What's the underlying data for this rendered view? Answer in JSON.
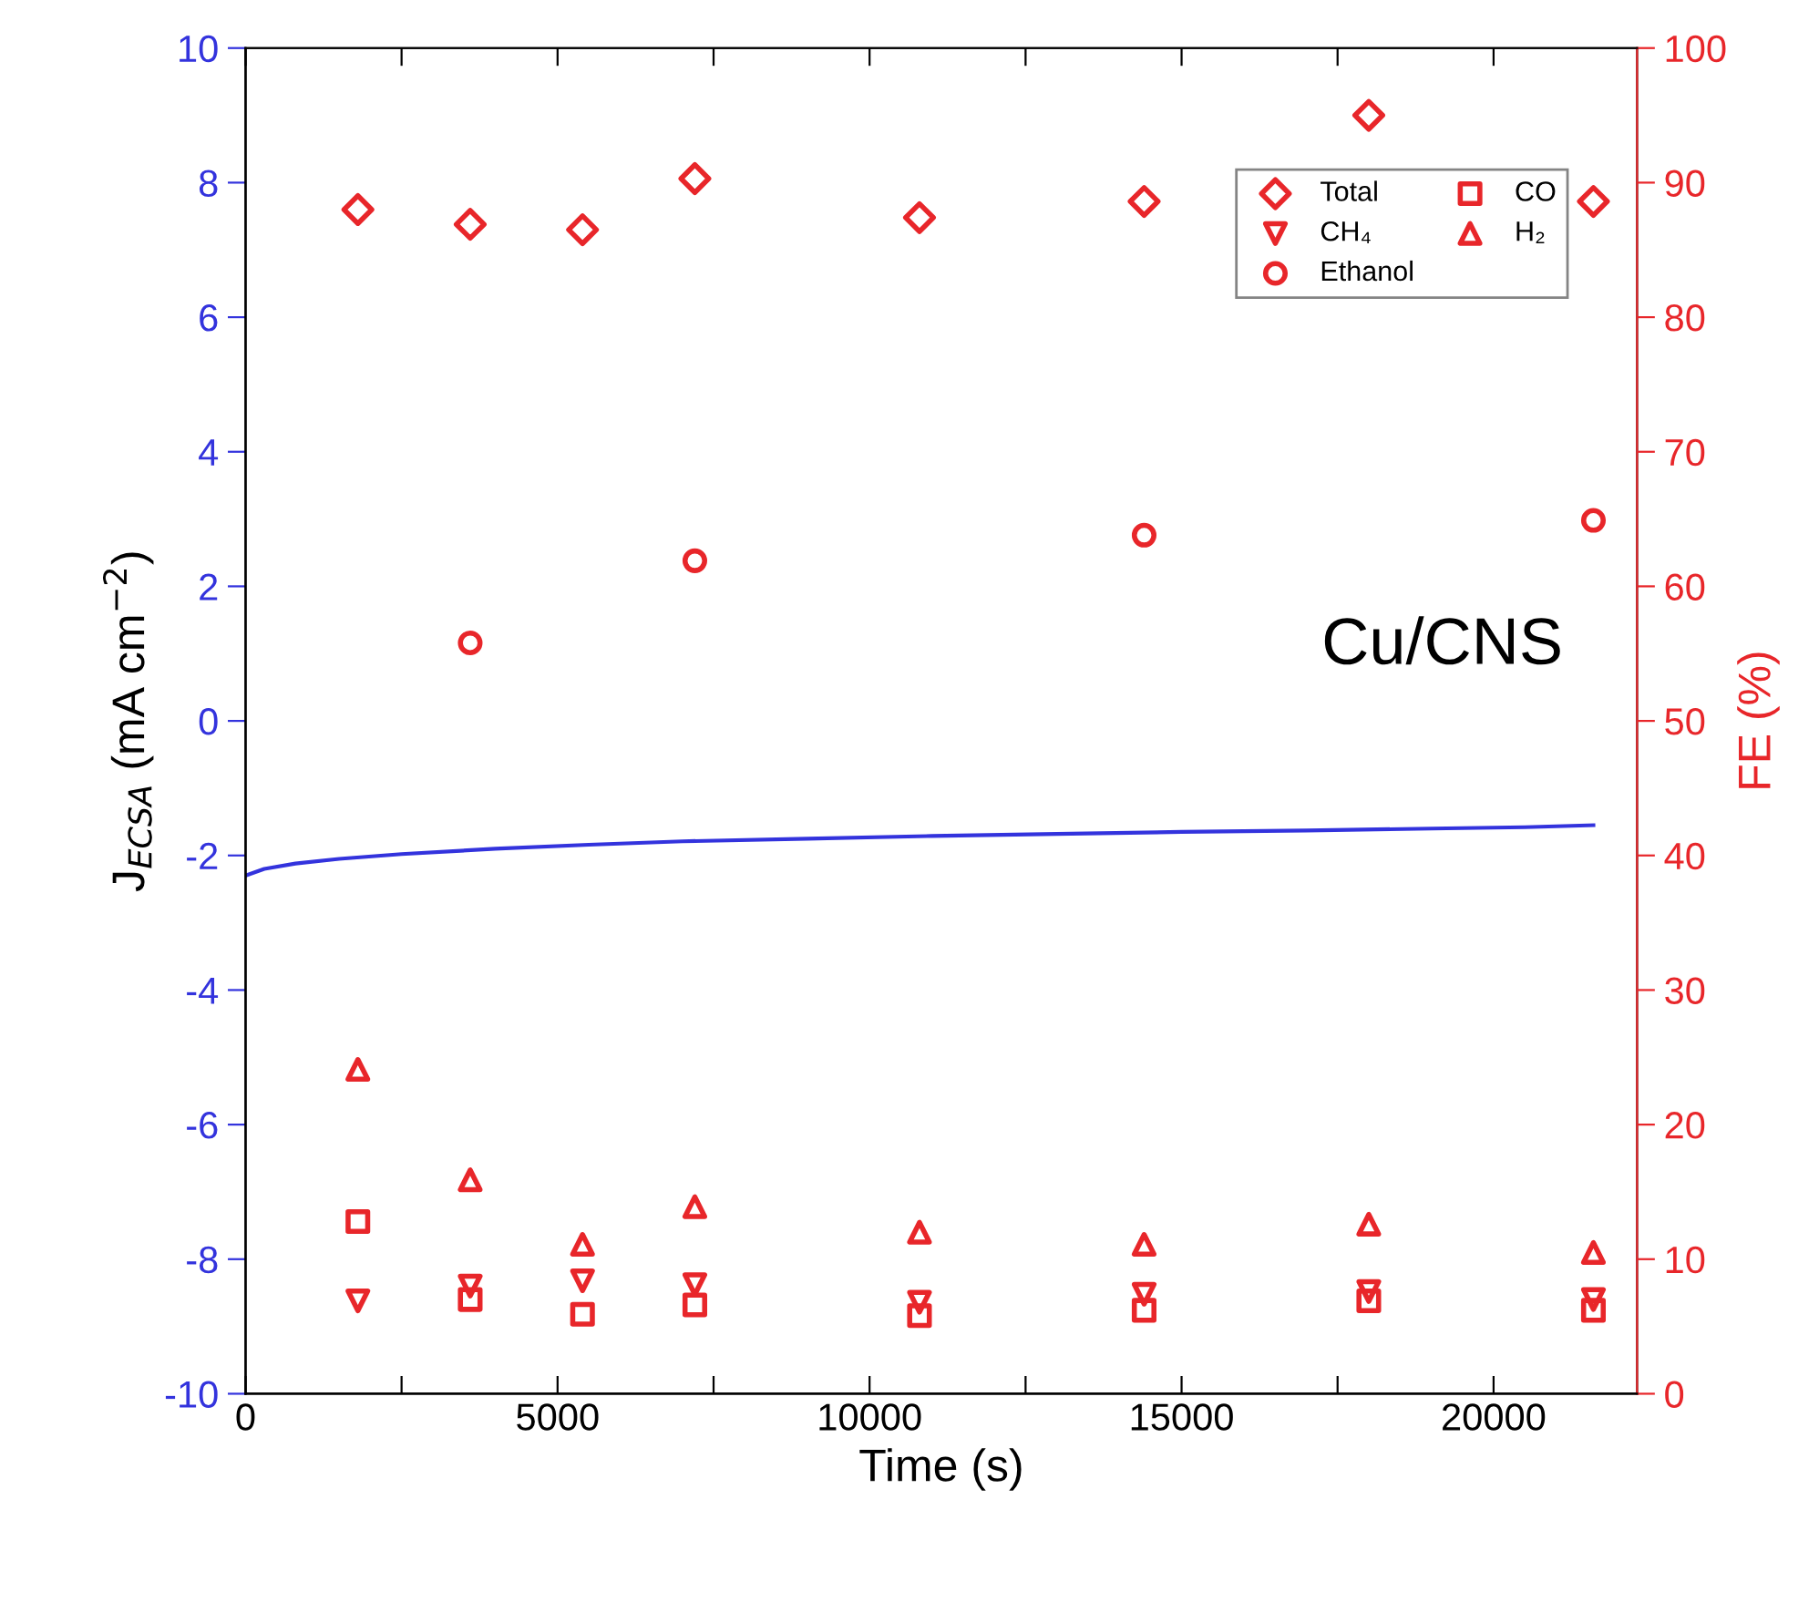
{
  "chart_data": {
    "type": "scatter",
    "xlabel": "Time (s)",
    "ylabel": "J$_{ECSA}$ (mA cm$^{−2}$)",
    "y2label": "FE (%)",
    "annotations": [
      "Cu/CNS"
    ],
    "xlim": [
      0,
      22300
    ],
    "xticks": [
      0,
      {
        "value": 2500,
        "label": null
      },
      5000,
      {
        "value": 7500,
        "label": null
      },
      10000,
      {
        "value": 12500,
        "label": null
      },
      15000,
      {
        "value": 17500,
        "label": null
      },
      20000
    ],
    "ylim": [
      -10,
      10
    ],
    "yticks": [
      -10,
      -8,
      -6,
      -4,
      -2,
      0,
      2,
      4,
      6,
      8,
      10
    ],
    "y2lim": [
      0,
      100
    ],
    "y2ticks": [
      0,
      10,
      20,
      30,
      40,
      50,
      60,
      70,
      80,
      90,
      100
    ],
    "legend": "top right",
    "grid": false,
    "series": [
      {
        "type": "line",
        "axis": "y",
        "color": "#3333dd",
        "marker": "none",
        "x": [
          0,
          300,
          800,
          1500,
          2500,
          4000,
          5500,
          7000,
          9000,
          11000,
          13000,
          15000,
          17000,
          19000,
          20500,
          21600
        ],
        "values": [
          -2.3,
          -2.2,
          -2.12,
          -2.05,
          -1.98,
          -1.9,
          -1.84,
          -1.79,
          -1.75,
          -1.71,
          -1.68,
          -1.65,
          -1.63,
          -1.6,
          -1.58,
          -1.55
        ]
      },
      {
        "name": "Total",
        "axis": "y2",
        "color": "#e8262a",
        "marker": "diamond",
        "x": [
          1800,
          3600,
          5400,
          7200,
          10800,
          14400,
          18000,
          21600
        ],
        "values": [
          88.0,
          86.9,
          86.5,
          90.3,
          87.4,
          88.6,
          95.0,
          88.6
        ]
      },
      {
        "name": "CH₄",
        "axis": "y2",
        "color": "#e8262a",
        "marker": "triangle_down",
        "x": [
          1800,
          3600,
          5400,
          7200,
          10800,
          14400,
          18000,
          21600
        ],
        "values": [
          6.9,
          8.0,
          8.4,
          8.1,
          6.8,
          7.4,
          7.6,
          7.0
        ]
      },
      {
        "name": "Ethanol",
        "axis": "y2",
        "color": "#e8262a",
        "marker": "circle",
        "x": [
          3600,
          7200,
          14400,
          21600
        ],
        "values": [
          55.8,
          61.9,
          63.8,
          64.9
        ]
      },
      {
        "name": "CO",
        "axis": "y2",
        "color": "#e8262a",
        "marker": "square",
        "x": [
          1800,
          3600,
          5400,
          7200,
          10800,
          14400,
          18000,
          21600
        ],
        "values": [
          12.8,
          7.0,
          5.9,
          6.6,
          5.8,
          6.2,
          6.9,
          6.2
        ]
      },
      {
        "name": "H₂",
        "axis": "y2",
        "color": "#e8262a",
        "marker": "triangle",
        "x": [
          1800,
          3600,
          5400,
          7200,
          10800,
          14400,
          18000,
          21600
        ],
        "values": [
          24.1,
          15.9,
          11.1,
          13.9,
          12.0,
          11.1,
          12.6,
          10.5
        ]
      }
    ]
  }
}
